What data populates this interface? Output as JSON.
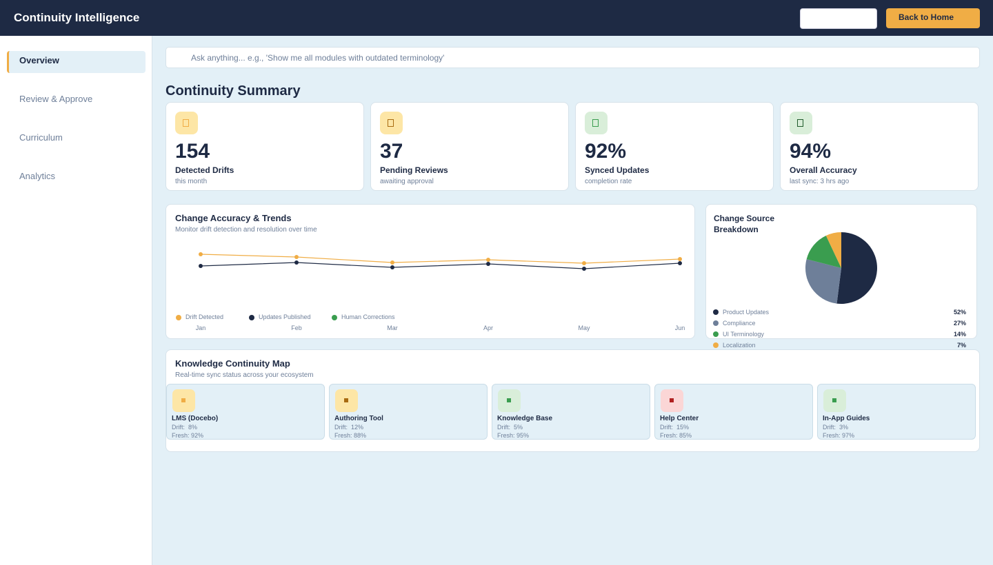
{
  "header": {
    "title": "Continuity Intelligence",
    "button": "Back to Home"
  },
  "sidebar": {
    "items": [
      "Overview",
      "Review & Approve",
      "Curriculum",
      "Analytics"
    ]
  },
  "search": {
    "placeholder": "Ask anything... e.g., 'Show me all modules with outdated terminology'"
  },
  "summary": {
    "title": "Continuity Summary",
    "cards": [
      {
        "value": "154",
        "label": "Detected Drifts",
        "sub": "this month"
      },
      {
        "value": "37",
        "label": "Pending Reviews",
        "sub": "awaiting approval"
      },
      {
        "value": "92%",
        "label": "Synced Updates",
        "sub": "completion rate"
      },
      {
        "value": "94%",
        "label": "Overall Accuracy",
        "sub": "last sync: 3 hrs ago"
      }
    ]
  },
  "chart_data": [
    {
      "type": "line",
      "title": "Change Accuracy & Trends",
      "subtitle": "Monitor drift detection and resolution over time",
      "categories": [
        "Jan",
        "Feb",
        "Mar",
        "Apr",
        "May",
        "Jun"
      ],
      "ylim": [
        0,
        100
      ],
      "series": [
        {
          "name": "Drift Detected",
          "color": "#f0ad45",
          "values": [
            77,
            73,
            65,
            69,
            64,
            70
          ]
        },
        {
          "name": "Updates Published",
          "color": "#1e2a44",
          "values": [
            60,
            65,
            58,
            63,
            56,
            64
          ]
        },
        {
          "name": "Human Corrections",
          "color": "#3a9d4f",
          "values": [
            null,
            null,
            null,
            null,
            null,
            null
          ]
        }
      ]
    },
    {
      "type": "pie",
      "title": "Change Source Breakdown",
      "categories": [
        "Product Updates",
        "Compliance",
        "UI Terminology",
        "Localization"
      ],
      "values": [
        52,
        27,
        14,
        7
      ],
      "value_labels": [
        "52%",
        "27%",
        "14%",
        "7%"
      ],
      "colors": [
        "#1e2a44",
        "#6e7f99",
        "#3a9d4f",
        "#f0ad45"
      ]
    }
  ],
  "map": {
    "title": "Knowledge Continuity Map",
    "subtitle": "Real-time sync status across your ecosystem",
    "tiles": [
      {
        "name": "LMS (Docebo)",
        "drift": "Drift:  8%",
        "fresh": "Fresh: 92%"
      },
      {
        "name": "Authoring Tool",
        "drift": "Drift:  12%",
        "fresh": "Fresh: 88%"
      },
      {
        "name": "Knowledge Base",
        "drift": "Drift:  5%",
        "fresh": "Fresh: 95%"
      },
      {
        "name": "Help Center",
        "drift": "Drift:  15%",
        "fresh": "Fresh: 85%"
      },
      {
        "name": "In-App Guides",
        "drift": "Drift:  3%",
        "fresh": "Fresh: 97%"
      }
    ]
  }
}
